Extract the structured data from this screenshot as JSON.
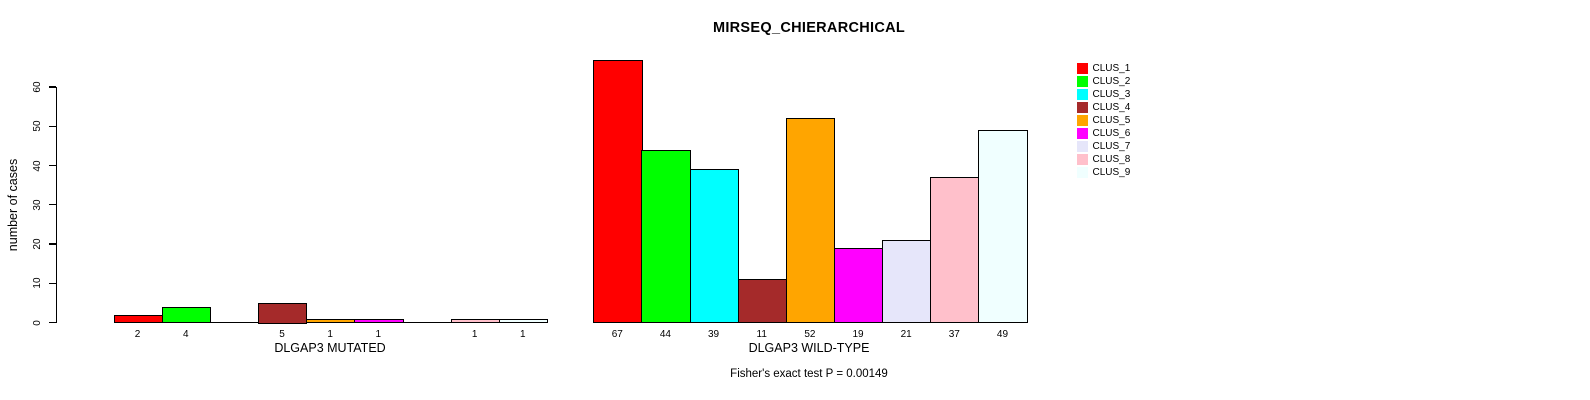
{
  "chart_data": {
    "type": "bar",
    "title": "MIRSEQ_CHIERARCHICAL",
    "ylabel": "number of cases",
    "ylim": [
      0,
      60
    ],
    "yticks": [
      0,
      10,
      20,
      30,
      40,
      50,
      60
    ],
    "grid": false,
    "legend_position": "right",
    "clusters": [
      {
        "name": "CLUS_1",
        "color": "#FF0000"
      },
      {
        "name": "CLUS_2",
        "color": "#00FF00"
      },
      {
        "name": "CLUS_3",
        "color": "#00FFFF"
      },
      {
        "name": "CLUS_4",
        "color": "#A52A2A"
      },
      {
        "name": "CLUS_5",
        "color": "#FFA500"
      },
      {
        "name": "CLUS_6",
        "color": "#FF00FF"
      },
      {
        "name": "CLUS_7",
        "color": "#E6E6FA"
      },
      {
        "name": "CLUS_8",
        "color": "#FFC0CB"
      },
      {
        "name": "CLUS_9",
        "color": "#F0FFFF"
      }
    ],
    "groups": [
      {
        "xlabel": "DLGAP3 MUTATED",
        "values": [
          2,
          4,
          0,
          5,
          1,
          1,
          0,
          1,
          1
        ],
        "bar_labels": [
          "2",
          "4",
          "",
          "5",
          "1",
          "1",
          "",
          "1",
          "1"
        ]
      },
      {
        "xlabel": "DLGAP3 WILD-TYPE",
        "values": [
          67,
          44,
          39,
          11,
          52,
          19,
          21,
          37,
          49
        ],
        "bar_labels": [
          "67",
          "44",
          "39",
          "11",
          "52",
          "19",
          "21",
          "37",
          "49"
        ]
      }
    ],
    "footnote": "Fisher's exact test P = 0.00149"
  }
}
